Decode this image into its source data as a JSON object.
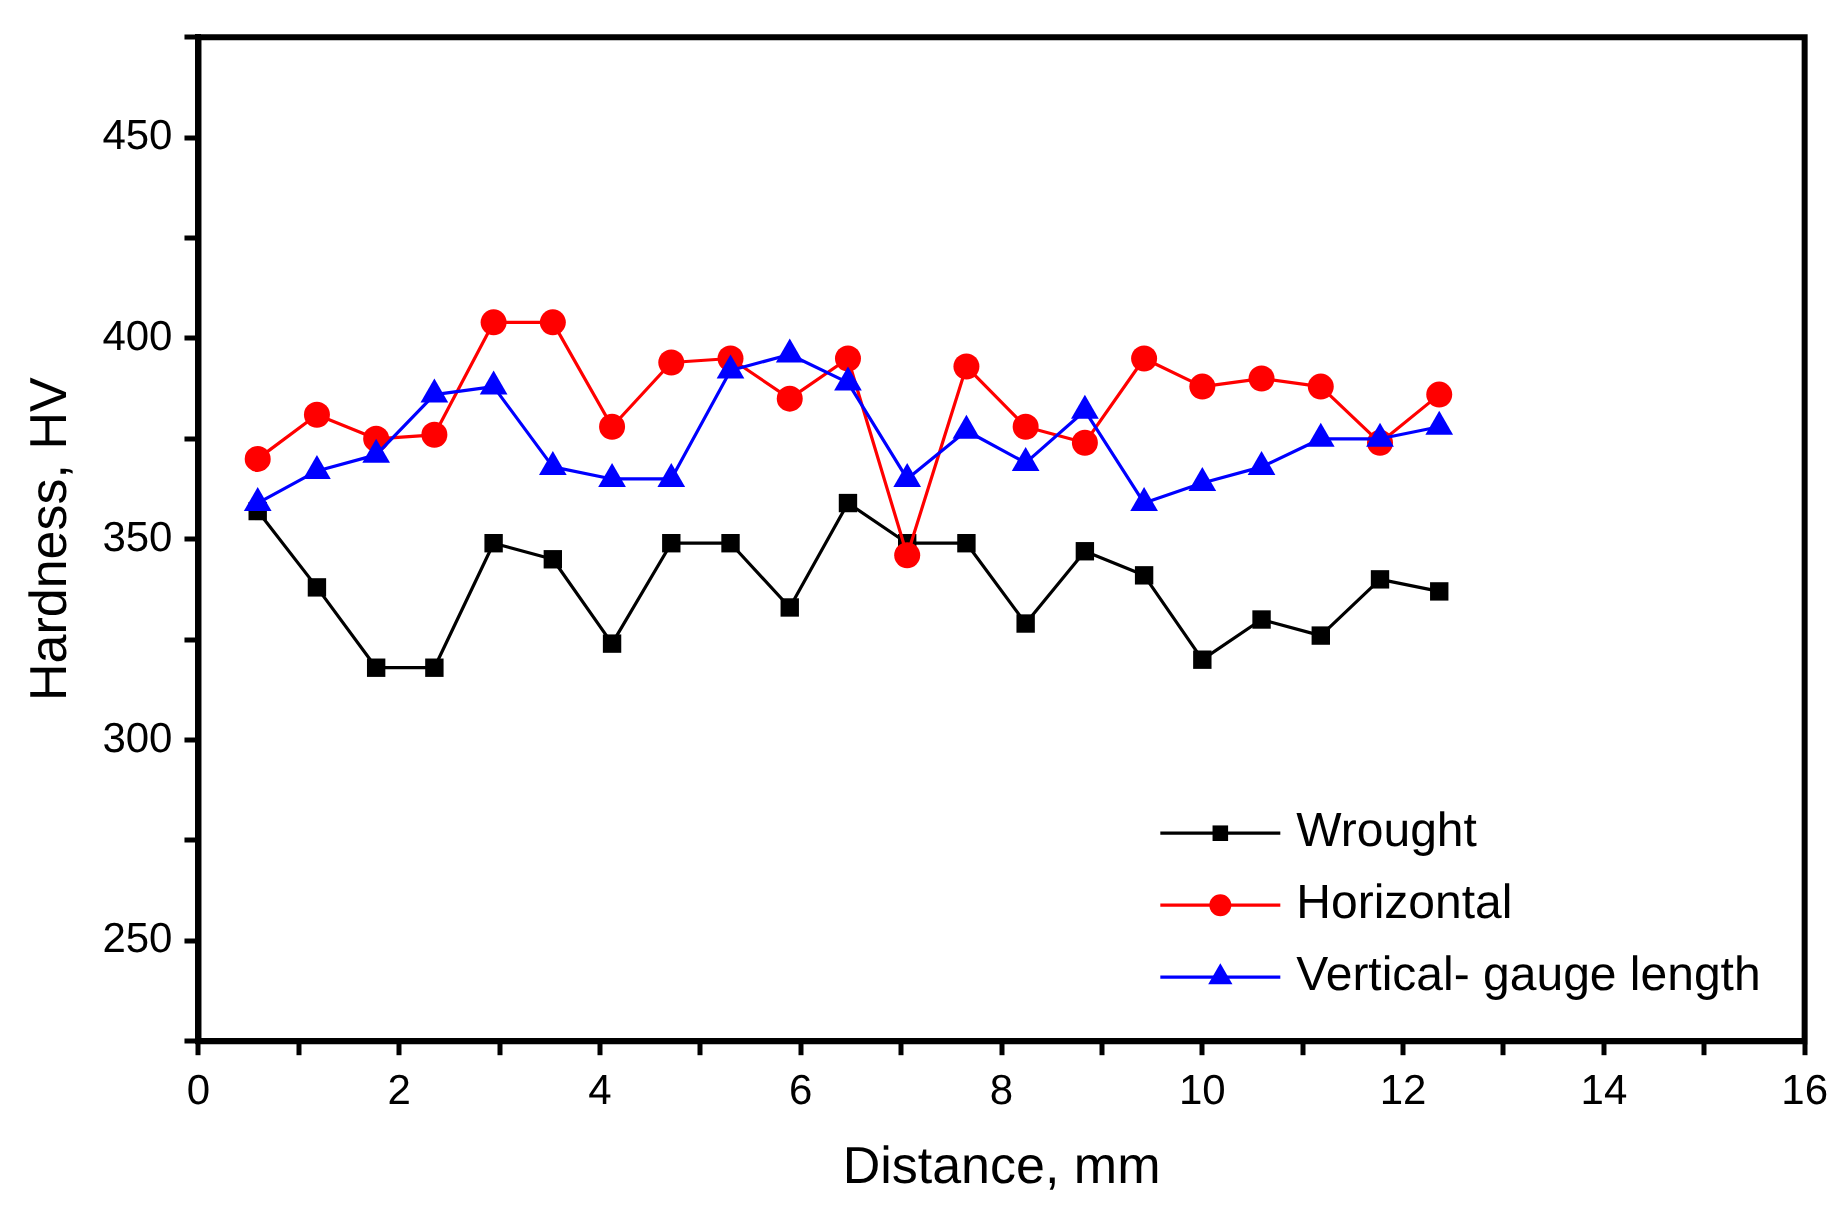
{
  "chart_data": {
    "type": "line",
    "xlabel": "Distance, mm",
    "ylabel": "Hardness, HV",
    "x": [
      0.59,
      1.18,
      1.77,
      2.35,
      2.94,
      3.53,
      4.12,
      4.71,
      5.3,
      5.89,
      6.47,
      7.06,
      7.65,
      8.24,
      8.83,
      9.42,
      10.0,
      10.59,
      11.18,
      11.77,
      12.36
    ],
    "series": [
      {
        "name": "Wrought",
        "color": "#000000",
        "marker": "square",
        "values": [
          357,
          338,
          318,
          318,
          349,
          345,
          324,
          349,
          349,
          333,
          359,
          349,
          349,
          329,
          347,
          341,
          320,
          330,
          326,
          340,
          337
        ]
      },
      {
        "name": "Horizontal",
        "color": "#ff0000",
        "marker": "circle",
        "values": [
          370,
          381,
          375,
          376,
          404,
          404,
          378,
          394,
          395,
          385,
          395,
          346,
          393,
          378,
          374,
          395,
          388,
          390,
          388,
          374,
          386
        ]
      },
      {
        "name": "Vertical- gauge length",
        "color": "#0000ff",
        "marker": "triangle",
        "values": [
          359,
          367,
          371,
          386,
          388,
          368,
          365,
          365,
          392,
          396,
          389,
          365,
          377,
          369,
          382,
          359,
          364,
          368,
          375,
          375,
          378
        ]
      }
    ],
    "xlim": [
      0,
      16
    ],
    "xticks": [
      0,
      {
        "value": 1,
        "label": null
      },
      2,
      {
        "value": 3,
        "label": null
      },
      4,
      {
        "value": 5,
        "label": null
      },
      6,
      {
        "value": 7,
        "label": null
      },
      8,
      {
        "value": 9,
        "label": null
      },
      10,
      {
        "value": 11,
        "label": null
      },
      12,
      {
        "value": 13,
        "label": null
      },
      14,
      {
        "value": 15,
        "label": null
      },
      16
    ],
    "ylim": [
      225,
      475
    ],
    "yticks": [
      {
        "value": 225,
        "label": null
      },
      250,
      {
        "value": 275,
        "label": null
      },
      300,
      {
        "value": 325,
        "label": null
      },
      350,
      {
        "value": 375,
        "label": null
      },
      400,
      {
        "value": 425,
        "label": null
      },
      450,
      {
        "value": 475,
        "label": null
      }
    ],
    "grid": false,
    "legend": "bottom right",
    "line_style": "solid"
  }
}
